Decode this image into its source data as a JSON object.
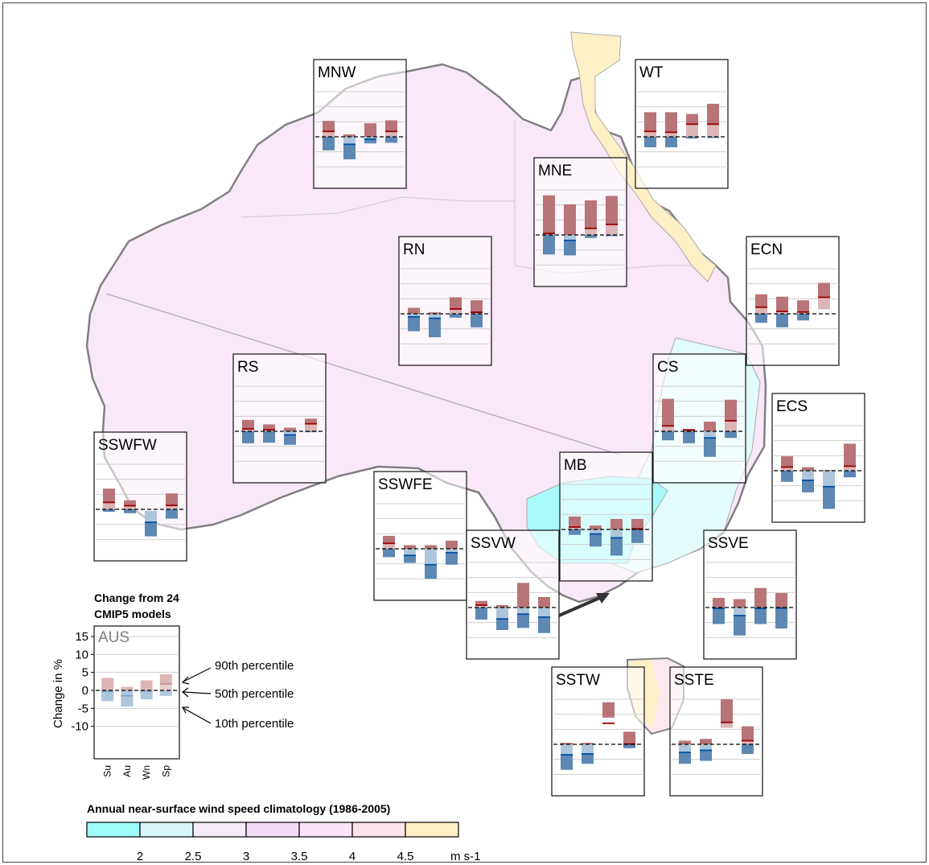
{
  "colors": {
    "map_fill_main": "#f9e8f8",
    "map_fill_teal": "#c4fbfb",
    "map_fill_lightteal": "#e2fbfb",
    "map_fill_pink": "#fde8ef",
    "map_fill_yellow": "#fdf0c6",
    "coast": "#808080",
    "increase_dark": "#b87477",
    "increase_light": "#dcb6b7",
    "decrease_dark": "#5d88b3",
    "decrease_light": "#aec6dc",
    "median_up": "#990000",
    "median_down": "#0050a0"
  },
  "legend_panel": {
    "title_line1": "Change from 24",
    "title_line2": "CMIP5 models",
    "ylabel": "Change in %",
    "label_90": "90th percentile",
    "label_50": "50th percentile",
    "label_10": "10th percentile"
  },
  "colorbar": {
    "title": "Annual near-surface wind speed climatology (1986-2005)",
    "unit": "m s-1",
    "colors": [
      "#a0fbfb",
      "#d8f6f7",
      "#f4eaf8",
      "#f3dcf5",
      "#f7e5f7",
      "#fde3ea",
      "#fdf0c6"
    ],
    "ticks": [
      "2",
      "2.5",
      "3",
      "3.5",
      "4",
      "4.5"
    ]
  },
  "chart_data": {
    "type": "bar",
    "description_units": "Projected change in near-surface wind speed (%), 10th/50th/90th percentile of 24 CMIP5 models, per season",
    "seasons": [
      "Su",
      "Au",
      "Wn",
      "Sp"
    ],
    "ylim": [
      -15,
      15
    ],
    "yticks": [
      15,
      10,
      5,
      0,
      -5,
      -10
    ],
    "ylabel": "Change in %",
    "panels": [
      {
        "name": "AUS",
        "p10": [
          -3,
          -4.5,
          -2.5,
          -1.5
        ],
        "p50": [
          -0.3,
          -1.5,
          -0.2,
          1.8
        ],
        "p90": [
          3.5,
          1,
          2.8,
          4.5
        ]
      },
      {
        "name": "MNW",
        "p10": [
          -4.5,
          -7.5,
          -2.2,
          -2
        ],
        "p50": [
          1.8,
          -2.5,
          -0.8,
          1.8
        ],
        "p90": [
          5.3,
          0.8,
          4.5,
          5.5
        ]
      },
      {
        "name": "WT",
        "p10": [
          -3.5,
          -3.5,
          -0.6,
          -0.4
        ],
        "p50": [
          1.8,
          1.5,
          4.2,
          4.2
        ],
        "p90": [
          8.2,
          8.2,
          7.6,
          11
        ]
      },
      {
        "name": "MNE",
        "p10": [
          -6.5,
          -6.8,
          -1,
          -0.4
        ],
        "p50": [
          0.5,
          -1.8,
          2.2,
          3.5
        ],
        "p90": [
          13.2,
          10.2,
          11.5,
          13
        ]
      },
      {
        "name": "RN",
        "p10": [
          -5.8,
          -7.8,
          -1.3,
          -4.5
        ],
        "p50": [
          -1,
          -1.5,
          1.6,
          0.5
        ],
        "p90": [
          2,
          0.5,
          5.5,
          4.5
        ]
      },
      {
        "name": "ECN",
        "p10": [
          -3,
          -4.5,
          -2.2,
          1.5
        ],
        "p50": [
          2.2,
          0.8,
          0.6,
          5.5
        ],
        "p90": [
          6.5,
          5.7,
          4.5,
          10.3
        ]
      },
      {
        "name": "RS",
        "p10": [
          -4,
          -3.8,
          -4.5,
          -0.3
        ],
        "p50": [
          0.8,
          0.5,
          -1.2,
          2.5
        ],
        "p90": [
          3.8,
          2.3,
          1.2,
          4.2
        ]
      },
      {
        "name": "CS",
        "p10": [
          -3,
          -4,
          -8.5,
          -2.2
        ],
        "p50": [
          1.8,
          0.4,
          -2.2,
          3.5
        ],
        "p90": [
          10.8,
          0.8,
          3.2,
          10.5
        ]
      },
      {
        "name": "ECS",
        "p10": [
          -3.7,
          -7.2,
          -12.7,
          -2.2
        ],
        "p50": [
          1.2,
          -3.2,
          -5.3,
          1.5
        ],
        "p90": [
          4.8,
          1.2,
          0.2,
          9
        ]
      },
      {
        "name": "SSWFW",
        "p10": [
          -0.8,
          -1.3,
          -9,
          -3.1
        ],
        "p50": [
          2.3,
          1.2,
          -4.3,
          1.3
        ],
        "p90": [
          6.9,
          3,
          -0.5,
          5.3
        ]
      },
      {
        "name": "SSWFE",
        "p10": [
          -2.8,
          -4.7,
          -10,
          -5.3
        ],
        "p50": [
          1.8,
          -2.2,
          -5.3,
          -1.3
        ],
        "p90": [
          4.3,
          1.2,
          1.2,
          2.7
        ]
      },
      {
        "name": "MB",
        "p10": [
          -1.8,
          -5.7,
          -8.7,
          -4.5
        ],
        "p50": [
          0.8,
          -1.5,
          -2.8,
          0.2
        ],
        "p90": [
          4.3,
          1.3,
          3.5,
          3.5
        ]
      },
      {
        "name": "SSVW",
        "p10": [
          -4,
          -7.5,
          -6.8,
          -8.5
        ],
        "p50": [
          0.8,
          -3.8,
          -2.2,
          -3.2
        ],
        "p90": [
          2.2,
          0.8,
          8.2,
          3.5
        ]
      },
      {
        "name": "SSVE",
        "p10": [
          -5.5,
          -9.3,
          -5.5,
          -7
        ],
        "p50": [
          -0.3,
          -2.7,
          -0.3,
          -0.2
        ],
        "p90": [
          3.2,
          2.8,
          6.5,
          4.8
        ]
      },
      {
        "name": "SSTW",
        "p10": [
          -8.5,
          -6.5,
          8.9,
          -1.3
        ],
        "p50": [
          -3.5,
          -3.2,
          7,
          0.1
        ],
        "p90": [
          0.5,
          0.5,
          14,
          4.2
        ]
      },
      {
        "name": "SSTE",
        "p10": [
          -6.5,
          -5.5,
          5.5,
          -3.2
        ],
        "p50": [
          -2.7,
          -2,
          7.3,
          1.2
        ],
        "p90": [
          1.2,
          1.8,
          15,
          6
        ]
      }
    ]
  }
}
